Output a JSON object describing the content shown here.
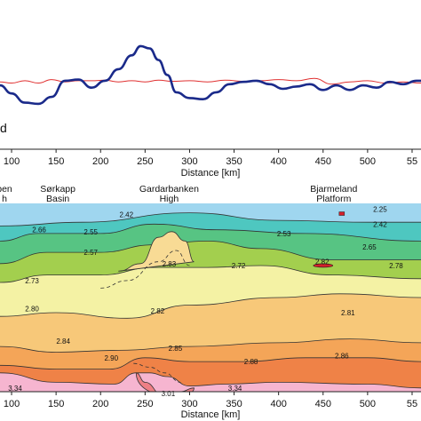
{
  "top_panel": {
    "partial_label": "d"
  },
  "chart_data": [
    {
      "type": "line",
      "panel": "gravity-profile",
      "xlabel": "Distance [km]",
      "x_ticks": [
        100,
        150,
        200,
        250,
        300,
        350,
        400,
        450,
        500,
        "55"
      ],
      "xlim": [
        87,
        560
      ],
      "ylim": [
        -1,
        1
      ],
      "grid": false,
      "series": [
        {
          "color": "#1a2a8a",
          "x": [
            87,
            100,
            115,
            130,
            145,
            160,
            175,
            190,
            205,
            220,
            235,
            245,
            255,
            265,
            275,
            285,
            300,
            315,
            330,
            345,
            360,
            375,
            390,
            405,
            420,
            435,
            450,
            465,
            480,
            495,
            510,
            525,
            540,
            555,
            560
          ],
          "y": [
            -0.14,
            -0.28,
            -0.44,
            -0.46,
            -0.34,
            -0.06,
            -0.04,
            -0.18,
            -0.06,
            0.14,
            0.38,
            0.54,
            0.5,
            0.3,
            0.04,
            -0.26,
            -0.36,
            -0.38,
            -0.26,
            -0.12,
            -0.08,
            -0.06,
            -0.12,
            -0.2,
            -0.16,
            -0.12,
            -0.22,
            -0.14,
            -0.22,
            -0.14,
            -0.18,
            -0.08,
            -0.12,
            -0.06,
            -0.06
          ]
        },
        {
          "color": "#e03030",
          "x": [
            87,
            100,
            115,
            130,
            145,
            160,
            175,
            190,
            205,
            220,
            235,
            250,
            265,
            280,
            300,
            320,
            340,
            360,
            380,
            400,
            420,
            440,
            460,
            480,
            500,
            520,
            540,
            560
          ],
          "y": [
            -0.08,
            -0.1,
            -0.06,
            -0.1,
            -0.04,
            -0.08,
            -0.06,
            -0.06,
            -0.05,
            -0.08,
            -0.06,
            -0.08,
            -0.05,
            -0.07,
            -0.06,
            -0.08,
            -0.05,
            -0.07,
            -0.06,
            -0.04,
            -0.06,
            -0.02,
            -0.12,
            -0.08,
            -0.06,
            -0.1,
            -0.08,
            -0.1
          ]
        }
      ]
    },
    {
      "type": "area",
      "panel": "density-cross-section",
      "xlabel": "Distance [km]",
      "x_ticks": [
        100,
        150,
        200,
        250,
        300,
        350,
        400,
        450,
        500,
        "55"
      ],
      "xlim": [
        87,
        560
      ],
      "region_labels": [
        {
          "lines": [
            "pen",
            "h"
          ],
          "x": 92
        },
        {
          "lines": [
            "Sørkapp",
            "Basin"
          ],
          "x": 152
        },
        {
          "lines": [
            "Gardarbanken",
            "High"
          ],
          "x": 277
        },
        {
          "lines": [
            "Bjarmeland",
            "Platform"
          ],
          "x": 462
        }
      ],
      "layers": [
        {
          "color": "#9fd6ef",
          "top": [
            [
              87,
              0.0
            ],
            [
              560,
              0.0
            ]
          ]
        },
        {
          "color": "#4ec7c0",
          "top": [
            [
              87,
              0.12
            ],
            [
              180,
              0.1
            ],
            [
              300,
              0.05
            ],
            [
              400,
              0.09
            ],
            [
              500,
              0.1
            ],
            [
              560,
              0.1
            ]
          ]
        },
        {
          "color": "#57c483",
          "top": [
            [
              87,
              0.2
            ],
            [
              130,
              0.16
            ],
            [
              200,
              0.16
            ],
            [
              260,
              0.11
            ],
            [
              330,
              0.14
            ],
            [
              430,
              0.16
            ],
            [
              560,
              0.2
            ]
          ]
        },
        {
          "color": "#a3cf4e",
          "top": [
            [
              87,
              0.32
            ],
            [
              140,
              0.26
            ],
            [
              200,
              0.26
            ],
            [
              260,
              0.22
            ],
            [
              320,
              0.2
            ],
            [
              380,
              0.24
            ],
            [
              460,
              0.3
            ],
            [
              560,
              0.3
            ]
          ]
        },
        {
          "color": "#f4f2a4",
          "top": [
            [
              87,
              0.42
            ],
            [
              140,
              0.38
            ],
            [
              200,
              0.38
            ],
            [
              260,
              0.34
            ],
            [
              320,
              0.34
            ],
            [
              380,
              0.33
            ],
            [
              460,
              0.38
            ],
            [
              560,
              0.4
            ]
          ]
        },
        {
          "color": "#f7c879",
          "top": [
            [
              87,
              0.6
            ],
            [
              150,
              0.58
            ],
            [
              230,
              0.61
            ],
            [
              300,
              0.54
            ],
            [
              400,
              0.5
            ],
            [
              470,
              0.48
            ],
            [
              560,
              0.5
            ]
          ]
        },
        {
          "color": "#f4a558",
          "top": [
            [
              87,
              0.76
            ],
            [
              150,
              0.79
            ],
            [
              220,
              0.78
            ],
            [
              300,
              0.76
            ],
            [
              400,
              0.74
            ],
            [
              480,
              0.72
            ],
            [
              560,
              0.74
            ]
          ]
        },
        {
          "color": "#ef8247",
          "top": [
            [
              87,
              0.86
            ],
            [
              150,
              0.88
            ],
            [
              210,
              0.88
            ],
            [
              250,
              0.82
            ],
            [
              300,
              0.84
            ],
            [
              360,
              0.84
            ],
            [
              430,
              0.82
            ],
            [
              500,
              0.82
            ],
            [
              560,
              0.84
            ]
          ]
        },
        {
          "color": "#f6b5d0",
          "top": [
            [
              87,
              0.9
            ],
            [
              150,
              0.95
            ],
            [
              215,
              0.96
            ],
            [
              240,
              0.9
            ],
            [
              255,
              0.9
            ],
            [
              275,
              0.92
            ],
            [
              300,
              0.97
            ],
            [
              340,
              0.96
            ],
            [
              400,
              0.95
            ],
            [
              500,
              0.96
            ],
            [
              560,
              0.98
            ]
          ]
        },
        {
          "color": "#ee7f85",
          "top": [
            [
              240,
              0.9
            ],
            [
              250,
              0.95
            ],
            [
              270,
              1.02
            ],
            [
              290,
              1.0
            ],
            [
              305,
              0.98
            ]
          ]
        }
      ],
      "density_labels": [
        {
          "text": "2.66",
          "x": 131,
          "y": 0.14
        },
        {
          "text": "2.42",
          "x": 229,
          "y": 0.06
        },
        {
          "text": "2.55",
          "x": 189,
          "y": 0.15
        },
        {
          "text": "2.25",
          "x": 514,
          "y": 0.03
        },
        {
          "text": "2.42",
          "x": 514,
          "y": 0.11
        },
        {
          "text": "2.53",
          "x": 406,
          "y": 0.16
        },
        {
          "text": "2.57",
          "x": 189,
          "y": 0.26
        },
        {
          "text": "2.65",
          "x": 502,
          "y": 0.23
        },
        {
          "text": "2.83",
          "x": 277,
          "y": 0.32
        },
        {
          "text": "2.72",
          "x": 355,
          "y": 0.33
        },
        {
          "text": "2.82",
          "x": 449,
          "y": 0.31
        },
        {
          "text": "2.78",
          "x": 532,
          "y": 0.33
        },
        {
          "text": "2.73",
          "x": 123,
          "y": 0.41
        },
        {
          "text": "2.80",
          "x": 123,
          "y": 0.56
        },
        {
          "text": "2.82",
          "x": 264,
          "y": 0.57
        },
        {
          "text": "2.81",
          "x": 478,
          "y": 0.58
        },
        {
          "text": "2.84",
          "x": 158,
          "y": 0.73
        },
        {
          "text": "2.85",
          "x": 284,
          "y": 0.77
        },
        {
          "text": "2.90",
          "x": 212,
          "y": 0.82
        },
        {
          "text": "2.88",
          "x": 369,
          "y": 0.84
        },
        {
          "text": "2.86",
          "x": 471,
          "y": 0.81
        },
        {
          "text": "3.34",
          "x": 104,
          "y": 0.98
        },
        {
          "text": "3.34",
          "x": 351,
          "y": 0.98
        },
        {
          "text": "3.01",
          "x": 276,
          "y": 1.01
        }
      ]
    }
  ]
}
